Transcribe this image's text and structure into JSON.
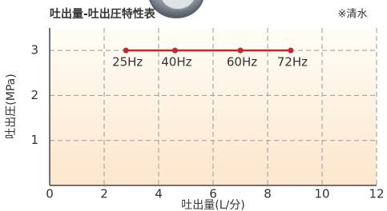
{
  "chart_data": {
    "type": "line",
    "title": "吐出量-吐出圧特性表",
    "note": "※清水",
    "x_label": "吐出量(L/分)",
    "y_label": "吐出圧(MPa)",
    "series": [
      {
        "color": "#c1272d",
        "x": [
          2.8,
          4.6,
          7.0,
          8.85
        ],
        "values": [
          3,
          3,
          3,
          3
        ],
        "labels": [
          "25Hz",
          "40Hz",
          "60Hz",
          "72Hz"
        ]
      }
    ],
    "xlim": [
      0,
      12
    ],
    "xticks": [
      0,
      2,
      4,
      6,
      8,
      10,
      12
    ],
    "ylim": [
      0,
      3.5
    ],
    "yticks": [
      1,
      2,
      3
    ],
    "grid": true
  }
}
